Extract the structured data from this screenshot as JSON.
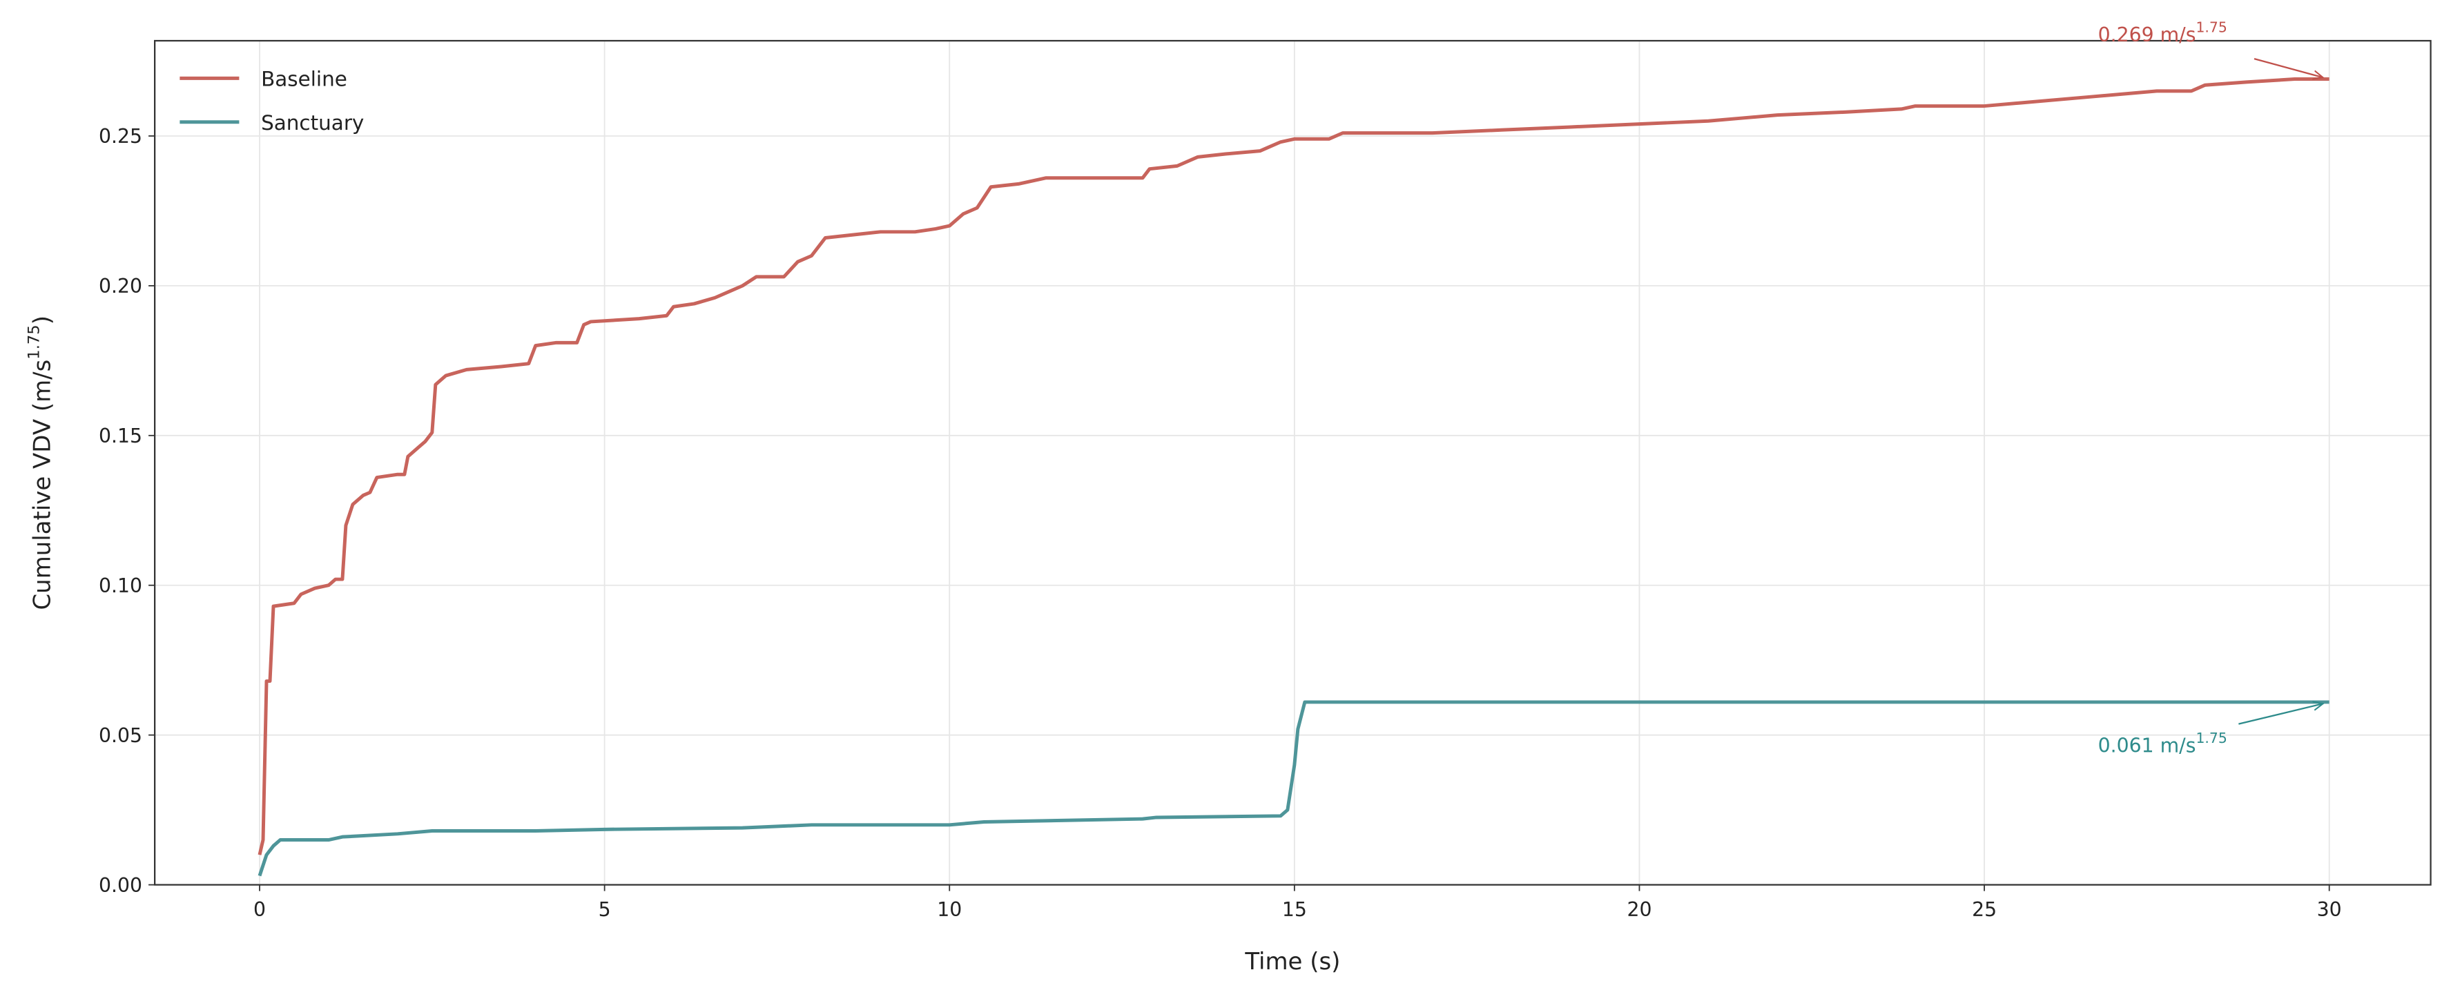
{
  "chart_data": {
    "type": "line",
    "x_label": "Time (s)",
    "y_label": {
      "text": "Cumulative VDV (m/s",
      "sup": "1.75",
      "suffix": ")"
    },
    "xlim": [
      -1.52,
      31.47
    ],
    "ylim": [
      0,
      0.2818
    ],
    "xticks": [
      0,
      5,
      10,
      15,
      20,
      25,
      30
    ],
    "yticks": [
      {
        "value": 0,
        "label": "0.00"
      },
      0.05,
      {
        "value": 0.1,
        "label": "0.10"
      },
      0.15,
      {
        "value": 0.2,
        "label": "0.20"
      },
      0.25
    ],
    "grid": true,
    "legend": "upper left",
    "series": [
      {
        "name": "Baseline",
        "color": "#c8645c",
        "x": [
          0,
          0.05,
          0.1,
          0.15,
          0.2,
          0.5,
          0.6,
          0.8,
          1.0,
          1.1,
          1.2,
          1.25,
          1.35,
          1.5,
          1.6,
          1.7,
          2.0,
          2.1,
          2.15,
          2.3,
          2.4,
          2.5,
          2.55,
          2.7,
          3.0,
          3.5,
          3.9,
          4.0,
          4.3,
          4.6,
          4.7,
          4.8,
          5.5,
          5.9,
          6.0,
          6.3,
          6.6,
          6.8,
          7.0,
          7.2,
          7.6,
          7.8,
          8.0,
          8.2,
          8.6,
          9.0,
          9.5,
          9.8,
          10.0,
          10.2,
          10.4,
          10.6,
          11.0,
          11.4,
          12.0,
          12.8,
          12.9,
          13.3,
          13.6,
          14.0,
          14.5,
          14.6,
          14.8,
          15.0,
          15.5,
          15.7,
          16.0,
          17.0,
          18.0,
          19.0,
          20.0,
          21.0,
          21.5,
          22.0,
          23.0,
          23.8,
          24.0,
          25.0,
          25.5,
          26.5,
          27.5,
          28.0,
          28.2,
          28.8,
          29.5,
          30
        ],
        "values": [
          0.01,
          0.015,
          0.068,
          0.068,
          0.093,
          0.094,
          0.097,
          0.099,
          0.1,
          0.102,
          0.102,
          0.12,
          0.127,
          0.13,
          0.131,
          0.136,
          0.137,
          0.137,
          0.143,
          0.146,
          0.148,
          0.151,
          0.167,
          0.17,
          0.172,
          0.173,
          0.174,
          0.18,
          0.181,
          0.181,
          0.187,
          0.188,
          0.189,
          0.19,
          0.193,
          0.194,
          0.196,
          0.198,
          0.2,
          0.203,
          0.203,
          0.208,
          0.21,
          0.216,
          0.217,
          0.218,
          0.218,
          0.219,
          0.22,
          0.224,
          0.226,
          0.233,
          0.234,
          0.236,
          0.236,
          0.236,
          0.239,
          0.24,
          0.243,
          0.244,
          0.245,
          0.246,
          0.248,
          0.249,
          0.249,
          0.251,
          0.251,
          0.251,
          0.252,
          0.253,
          0.254,
          0.255,
          0.256,
          0.257,
          0.258,
          0.259,
          0.26,
          0.26,
          0.261,
          0.263,
          0.265,
          0.265,
          0.267,
          0.268,
          0.269,
          0.269
        ]
      },
      {
        "name": "Sanctuary",
        "color": "#4e9599",
        "x": [
          0,
          0.1,
          0.2,
          0.3,
          1.0,
          1.2,
          2.0,
          2.5,
          4.0,
          5,
          7,
          8,
          10,
          10.5,
          12.8,
          13,
          14.8,
          14.9,
          15.0,
          15.05,
          15.15,
          20,
          30
        ],
        "values": [
          0.003,
          0.01,
          0.013,
          0.015,
          0.015,
          0.016,
          0.017,
          0.018,
          0.018,
          0.0185,
          0.019,
          0.02,
          0.02,
          0.021,
          0.022,
          0.0225,
          0.023,
          0.025,
          0.04,
          0.052,
          0.061,
          0.061,
          0.061
        ]
      }
    ],
    "annotations": [
      {
        "text": "0.269 m/s",
        "sup": "1.75",
        "x": 30,
        "y": 0.269,
        "color": "#c0504a"
      },
      {
        "text": "0.061 m/s",
        "sup": "1.75",
        "x": 30,
        "y": 0.061,
        "color": "#2e8b8b"
      }
    ]
  }
}
